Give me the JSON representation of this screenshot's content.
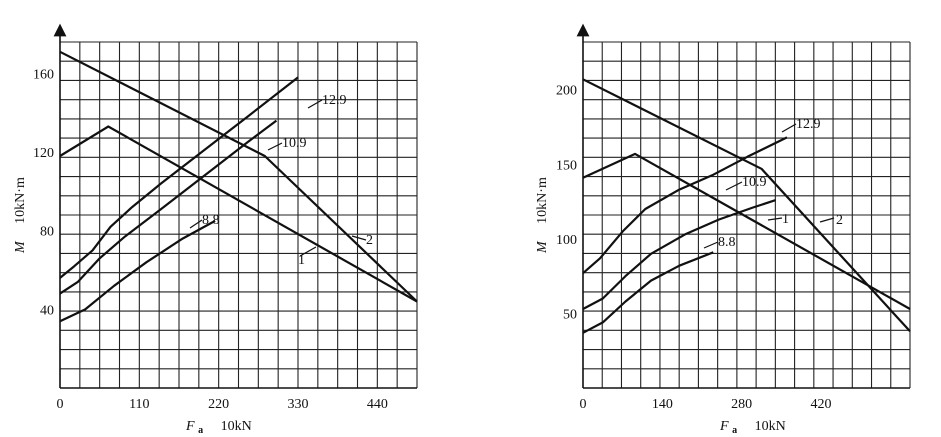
{
  "chart_data": [
    {
      "type": "line",
      "xlabel_symbol": "F",
      "xlabel_sub": "a",
      "xlabel_unit": "10kN",
      "ylabel_symbol": "M",
      "ylabel_unit": "10kN·m",
      "xlim": [
        0,
        495
      ],
      "ylim": [
        0,
        176
      ],
      "x_ticks": [
        0,
        110,
        220,
        330,
        440
      ],
      "x_tick_labels": [
        "0",
        "110",
        "220",
        "330",
        "440"
      ],
      "y_ticks": [
        40,
        80,
        120,
        160
      ],
      "y_tick_labels": [
        "40",
        "80",
        "120",
        "160"
      ],
      "grid": true,
      "series": [
        {
          "name": "12.9",
          "x": [
            0,
            20,
            45,
            70,
            100,
            140,
            200,
            260,
            330
          ],
          "y": [
            56,
            62,
            70,
            82,
            92,
            104,
            121,
            138,
            158
          ]
        },
        {
          "name": "10.9",
          "x": [
            0,
            25,
            55,
            90,
            140,
            200,
            260,
            300
          ],
          "y": [
            48,
            54,
            66,
            77,
            91,
            108,
            125,
            136
          ]
        },
        {
          "name": "8.8",
          "x": [
            0,
            35,
            75,
            120,
            170,
            215
          ],
          "y": [
            34,
            40,
            52,
            64,
            76,
            85
          ]
        },
        {
          "name": "1",
          "x": [
            0,
            67,
            495
          ],
          "y": [
            118,
            133,
            44
          ]
        },
        {
          "name": "2",
          "x": [
            0,
            284,
            495
          ],
          "y": [
            171,
            118,
            44
          ]
        }
      ]
    },
    {
      "type": "line",
      "xlabel_symbol": "F",
      "xlabel_sub": "a",
      "xlabel_unit": "10kN",
      "ylabel_symbol": "M",
      "ylabel_unit": "10kN·m",
      "xlim": [
        0,
        577
      ],
      "ylim": [
        0,
        232
      ],
      "x_ticks": [
        0,
        140,
        280,
        420
      ],
      "x_tick_labels": [
        "0",
        "140",
        "280",
        "420"
      ],
      "y_ticks": [
        50,
        100,
        150,
        200
      ],
      "y_tick_labels": [
        "50",
        "100",
        "150",
        "200"
      ],
      "grid": true,
      "series": [
        {
          "name": "12.9",
          "x": [
            0,
            30,
            70,
            110,
            170,
            230,
            290,
            360
          ],
          "y": [
            77,
            87,
            105,
            120,
            133,
            143,
            155,
            168
          ]
        },
        {
          "name": "10.9",
          "x": [
            0,
            35,
            75,
            120,
            180,
            240,
            300,
            340
          ],
          "y": [
            53,
            60,
            75,
            90,
            103,
            113,
            121,
            126
          ]
        },
        {
          "name": "8.8",
          "x": [
            0,
            35,
            75,
            120,
            170,
            230
          ],
          "y": [
            37,
            44,
            58,
            72,
            82,
            91
          ]
        },
        {
          "name": "1",
          "x": [
            0,
            92,
            577
          ],
          "y": [
            141,
            157,
            53
          ]
        },
        {
          "name": "2",
          "x": [
            0,
            315,
            577
          ],
          "y": [
            207,
            147,
            38
          ]
        }
      ]
    }
  ],
  "labels": {
    "left": {
      "series": [
        "12.9",
        "10.9",
        "8.8",
        "1",
        "2"
      ]
    },
    "right": {
      "series": [
        "12.9",
        "10.9",
        "8.8",
        "1",
        "2"
      ]
    }
  }
}
